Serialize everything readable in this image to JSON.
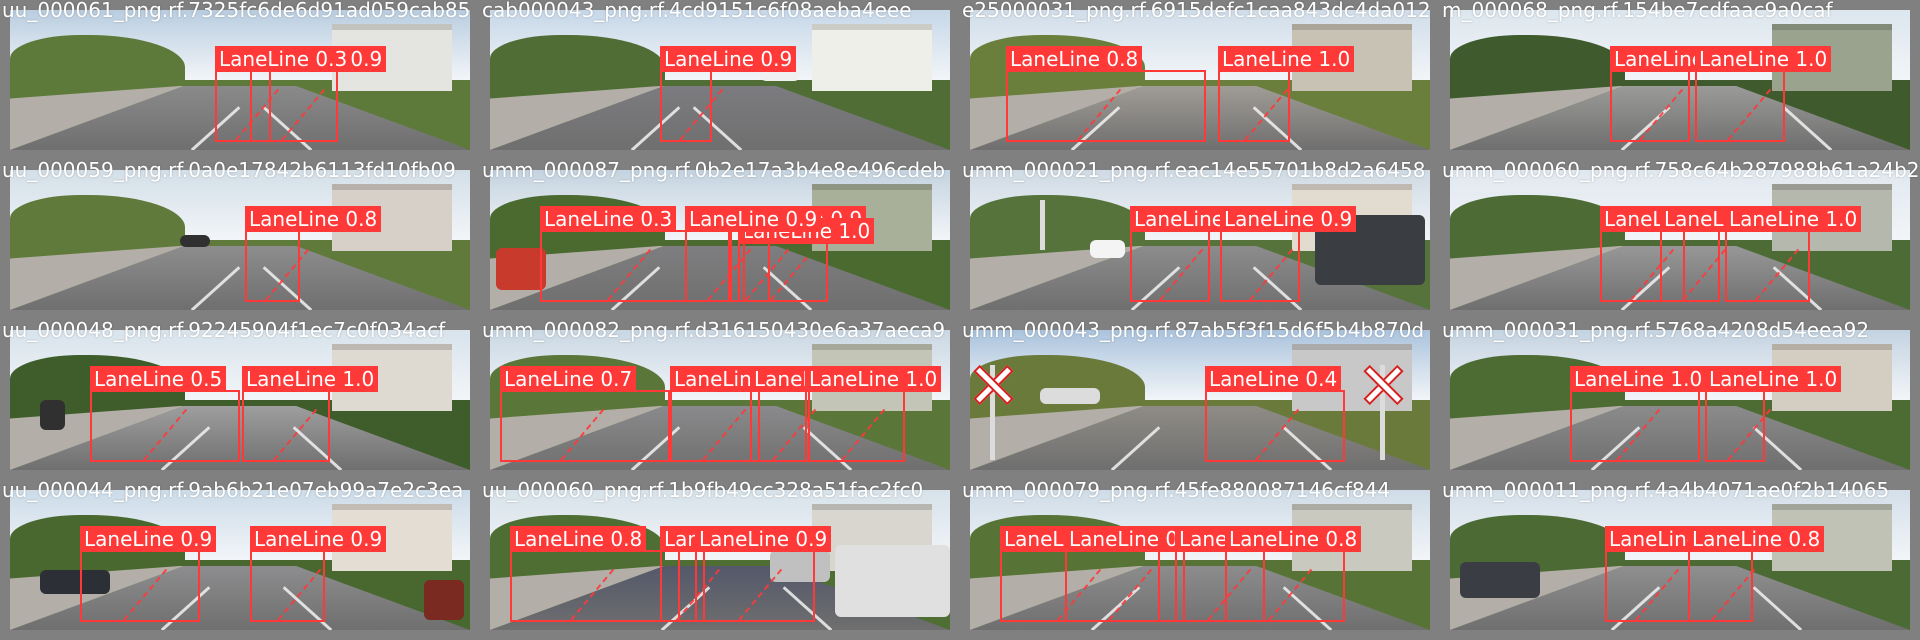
{
  "colors": {
    "box": "#ff3838",
    "border": "#808080",
    "label_text": "#ffffff"
  },
  "tiles": [
    {
      "file_name": "uu_000061_png.rf.7325fc6de6d91ad059cab85",
      "scene": {
        "sky": "#b9cde0",
        "veg": "#5d7a3a",
        "road": "#8a8a8a",
        "bldg": "#e4e4e0"
      },
      "detections": [
        {
          "label": "LaneLine 0.9"
        },
        {
          "label": "LaneLine 0.3"
        }
      ]
    },
    {
      "file_name": "cab000043_png.rf.4cd9151c6f08aeba4eee",
      "scene": {
        "sky": "#c6d7e8",
        "veg": "#4f6d35",
        "road": "#7c7c80",
        "bldg": "#efefea"
      },
      "detections": [
        {
          "label": "LaneLine 0.9"
        }
      ]
    },
    {
      "file_name": "e25000031_png.rf.6915defc1caa843dc4da012",
      "scene": {
        "sky": "#d0dde9",
        "veg": "#6b7f3d",
        "road": "#a09c96",
        "bldg": "#c7c2b4"
      },
      "detections": [
        {
          "label": "LaneLine 0.8"
        },
        {
          "label": "LaneLine 1.0"
        }
      ]
    },
    {
      "file_name": "m_000068_png.rf.154be7cdfaac9a0caf",
      "scene": {
        "sky": "#dce6ee",
        "veg": "#3f5a2c",
        "road": "#9a9a98",
        "bldg": "#9aa38e"
      },
      "detections": [
        {
          "label": "LaneLine 1.0"
        },
        {
          "label": "LaneLine 1.0"
        }
      ]
    },
    {
      "file_name": "uu_000059_png.rf.0a0e17842b6113fd10fb09",
      "scene": {
        "sky": "#d3dfe8",
        "veg": "#5f7a3b",
        "road": "#8d8d8d",
        "bldg": "#d6d0c8"
      },
      "detections": [
        {
          "label": "LaneLine 0.8"
        }
      ]
    },
    {
      "file_name": "umm_000087_png.rf.0b2e17a3b4e8e496cdeb",
      "scene": {
        "sky": "#c4d3e0",
        "veg": "#4a6a30",
        "road": "#7e7e80",
        "bldg": "#a8b09a"
      },
      "detections": [
        {
          "label": "LaneLine 0.3"
        },
        {
          "label": "LaneLine 0.9"
        },
        {
          "label": "LaneLine 1.0"
        },
        {
          "label": "LaneLine 0.9"
        }
      ]
    },
    {
      "file_name": "umm_000021_png.rf.eac14e55701b8d2a6458",
      "scene": {
        "sky": "#cfdae4",
        "veg": "#55733a",
        "road": "#8c8c8c",
        "bldg": "#e1dbd0"
      },
      "detections": [
        {
          "label": "LaneLine 0.9"
        },
        {
          "label": "LaneLine 0.9"
        }
      ]
    },
    {
      "file_name": "umm_000060_png.rf.758c64b287988b61a24b2",
      "scene": {
        "sky": "#e0e8ef",
        "veg": "#4c6b35",
        "road": "#979797",
        "bldg": "#b5b8ad"
      },
      "detections": [
        {
          "label": "LaneLine 0.6"
        },
        {
          "label": "LaneLine 0.8"
        },
        {
          "label": "LaneLine 1.0"
        }
      ]
    },
    {
      "file_name": "uu_000048_png.rf.92245904f1ec7c0f034acf",
      "scene": {
        "sky": "#d8e3ec",
        "veg": "#3e5d2b",
        "road": "#9e9e9e",
        "bldg": "#dedad2"
      },
      "detections": [
        {
          "label": "LaneLine 0.5"
        },
        {
          "label": "LaneLine 1.0"
        }
      ]
    },
    {
      "file_name": "umm_000082_png.rf.d316150430e6a37aeca9",
      "scene": {
        "sky": "#c9d7e3",
        "veg": "#5a7638",
        "road": "#8a8a8c",
        "bldg": "#c3c6b6"
      },
      "detections": [
        {
          "label": "LaneLine 0.7"
        },
        {
          "label": "LaneLine 0.9"
        },
        {
          "label": "LaneLine 0.9"
        },
        {
          "label": "LaneLine 1.0"
        }
      ]
    },
    {
      "file_name": "umm_000043_png.rf.87ab5f3f15d6f5b4b870d",
      "scene": {
        "sky": "#aac3dd",
        "veg": "#6a7a3a",
        "road": "#8f8c86",
        "bldg": "#c8c8c8"
      },
      "detections": [
        {
          "label": "LaneLine 0.4"
        }
      ]
    },
    {
      "file_name": "umm_000031_png.rf.5768a4208d54eea92",
      "scene": {
        "sky": "#c4d3e1",
        "veg": "#4d6c34",
        "road": "#8b8b8b",
        "bldg": "#d4cdc2"
      },
      "detections": [
        {
          "label": "LaneLine 1.0"
        },
        {
          "label": "LaneLine 1.0"
        }
      ]
    },
    {
      "file_name": "uu_000044_png.rf.9ab6b21e07eb99a7e2c3ea",
      "scene": {
        "sky": "#cbdbe8",
        "veg": "#48682f",
        "road": "#8d8d8f",
        "bldg": "#e3ddd4"
      },
      "detections": [
        {
          "label": "LaneLine 0.9"
        },
        {
          "label": "LaneLine 0.9"
        }
      ]
    },
    {
      "file_name": "uu_000060_png.rf.1b9fb49cc328a51fac2fc0",
      "scene": {
        "sky": "#d7e2ea",
        "veg": "#4f6e33",
        "road": "#54586a",
        "bldg": "#d9d6d0"
      },
      "detections": [
        {
          "label": "LaneLine 0.8"
        },
        {
          "label": "LaneLine 0.8"
        },
        {
          "label": "LaneLine 0.9"
        }
      ]
    },
    {
      "file_name": "umm_000079_png.rf.45fe880087146cf844",
      "scene": {
        "sky": "#cfdce7",
        "veg": "#577436",
        "road": "#8c8c8c",
        "bldg": "#c9c9c0"
      },
      "detections": [
        {
          "label": "LaneLine 0.8"
        },
        {
          "label": "LaneLine 0.9"
        },
        {
          "label": "LaneLine 1.0"
        },
        {
          "label": "LaneLine 0.8"
        }
      ]
    },
    {
      "file_name": "umm_000011_png.rf.4a4b4071ae0f2b14065",
      "scene": {
        "sky": "#d4dfe9",
        "veg": "#4b6a34",
        "road": "#8f8f8f",
        "bldg": "#bfc2b5"
      },
      "detections": [
        {
          "label": "LaneLine 0.4"
        },
        {
          "label": "LaneLine 0.8"
        }
      ]
    }
  ]
}
